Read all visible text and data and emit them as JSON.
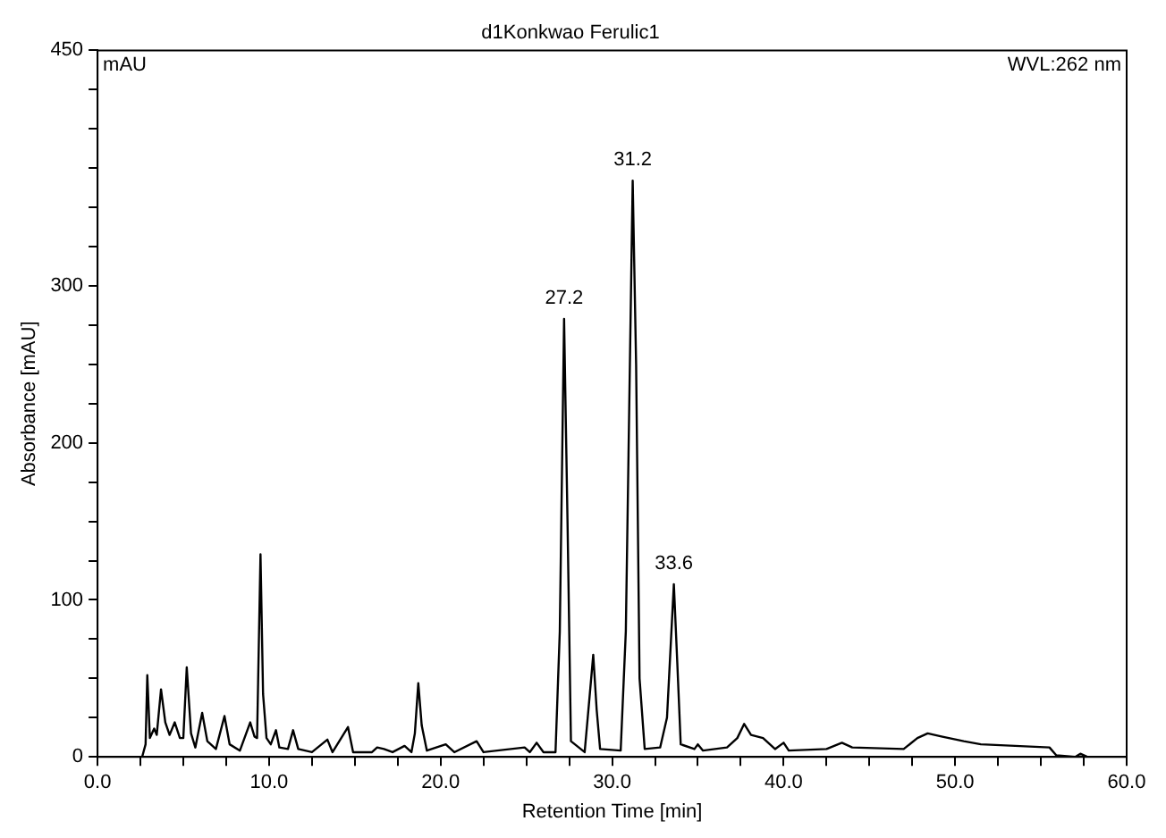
{
  "chart_data": {
    "type": "line",
    "title": "d1Konkwao Ferulic1",
    "xlabel": "Retention Time [min]",
    "ylabel": "Absorbance [mAU]",
    "annotations": [
      "mAU",
      "WVL:262 nm",
      {
        "text": "27.2",
        "x": 27.2,
        "y": 279
      },
      {
        "text": "31.2",
        "x": 31.2,
        "y": 367
      },
      {
        "text": "33.6",
        "x": 33.6,
        "y": 110
      }
    ],
    "x": [
      0,
      2.6,
      2.8,
      2.9,
      3.05,
      3.3,
      3.45,
      3.7,
      3.95,
      4.2,
      4.5,
      4.8,
      5.0,
      5.2,
      5.45,
      5.7,
      6.1,
      6.4,
      6.9,
      7.4,
      7.7,
      8.3,
      8.9,
      9.15,
      9.3,
      9.5,
      9.65,
      9.85,
      10.1,
      10.4,
      10.6,
      11.1,
      11.4,
      11.7,
      12.5,
      13.4,
      13.7,
      14.6,
      14.9,
      16.0,
      16.3,
      16.7,
      17.2,
      17.9,
      18.3,
      18.5,
      18.7,
      18.9,
      19.2,
      20.3,
      20.8,
      22.1,
      22.5,
      24.9,
      25.2,
      25.6,
      26.0,
      26.7,
      26.95,
      27.2,
      27.4,
      27.6,
      28.4,
      28.7,
      28.9,
      29.1,
      29.3,
      30.5,
      30.8,
      31.2,
      31.4,
      31.6,
      31.9,
      32.8,
      33.2,
      33.6,
      33.8,
      34.0,
      34.8,
      35.0,
      35.3,
      36.7,
      37.3,
      37.7,
      38.1,
      38.8,
      39.5,
      40.0,
      40.3,
      42.5,
      43.4,
      44.0,
      47.0,
      47.8,
      48.4,
      49.2,
      50.5,
      51.5,
      55.5,
      55.9,
      57.0,
      57.3,
      57.7,
      60
    ],
    "series": [
      {
        "color": "#000000",
        "values": [
          0,
          0,
          8,
          52,
          12,
          18,
          14,
          43,
          22,
          14,
          22,
          12,
          12,
          57,
          15,
          6,
          28,
          10,
          5,
          26,
          8,
          4,
          22,
          13,
          12,
          129,
          40,
          12,
          8,
          17,
          6,
          5,
          17,
          5,
          3,
          11,
          3,
          19,
          3,
          3,
          6,
          5,
          3,
          7,
          3,
          15,
          47,
          20,
          4,
          8,
          3,
          10,
          3,
          6,
          3,
          9,
          3,
          3,
          80,
          279,
          150,
          10,
          3,
          40,
          65,
          30,
          5,
          4,
          80,
          367,
          250,
          50,
          5,
          6,
          25,
          110,
          60,
          8,
          5,
          8,
          4,
          6,
          12,
          21,
          14,
          12,
          5,
          9,
          4,
          5,
          9,
          6,
          5,
          12,
          15,
          13,
          10,
          8,
          6,
          1,
          0,
          2,
          0,
          0
        ]
      }
    ],
    "xlim": [
      0,
      60
    ],
    "xticks": [
      {
        "value": 0,
        "label": "0.0"
      },
      {
        "value": 2.5,
        "label": null
      },
      {
        "value": 5,
        "label": null
      },
      {
        "value": 7.5,
        "label": null
      },
      {
        "value": 10,
        "label": "10.0"
      },
      {
        "value": 12.5,
        "label": null
      },
      {
        "value": 15,
        "label": null
      },
      {
        "value": 17.5,
        "label": null
      },
      {
        "value": 20,
        "label": "20.0"
      },
      {
        "value": 22.5,
        "label": null
      },
      {
        "value": 25,
        "label": null
      },
      {
        "value": 27.5,
        "label": null
      },
      {
        "value": 30,
        "label": "30.0"
      },
      {
        "value": 32.5,
        "label": null
      },
      {
        "value": 35,
        "label": null
      },
      {
        "value": 37.5,
        "label": null
      },
      {
        "value": 40,
        "label": "40.0"
      },
      {
        "value": 42.5,
        "label": null
      },
      {
        "value": 45,
        "label": null
      },
      {
        "value": 47.5,
        "label": null
      },
      {
        "value": 50,
        "label": "50.0"
      },
      {
        "value": 52.5,
        "label": null
      },
      {
        "value": 55,
        "label": null
      },
      {
        "value": 57.5,
        "label": null
      },
      {
        "value": 60,
        "label": "60.0"
      }
    ],
    "ylim": [
      0,
      450
    ],
    "yticks": [
      0,
      {
        "value": 25,
        "label": null
      },
      {
        "value": 50,
        "label": null
      },
      {
        "value": 75,
        "label": null
      },
      100,
      {
        "value": 125,
        "label": null
      },
      {
        "value": 150,
        "label": null
      },
      {
        "value": 175,
        "label": null
      },
      200,
      {
        "value": 225,
        "label": null
      },
      {
        "value": 250,
        "label": null
      },
      {
        "value": 275,
        "label": null
      },
      300,
      {
        "value": 325,
        "label": null
      },
      {
        "value": 350,
        "label": null
      },
      {
        "value": 375,
        "label": null
      },
      {
        "value": 400,
        "label": null
      },
      {
        "value": 425,
        "label": null
      },
      450
    ],
    "grid": false,
    "legend": false,
    "marker": "none",
    "line_style": "solid"
  }
}
